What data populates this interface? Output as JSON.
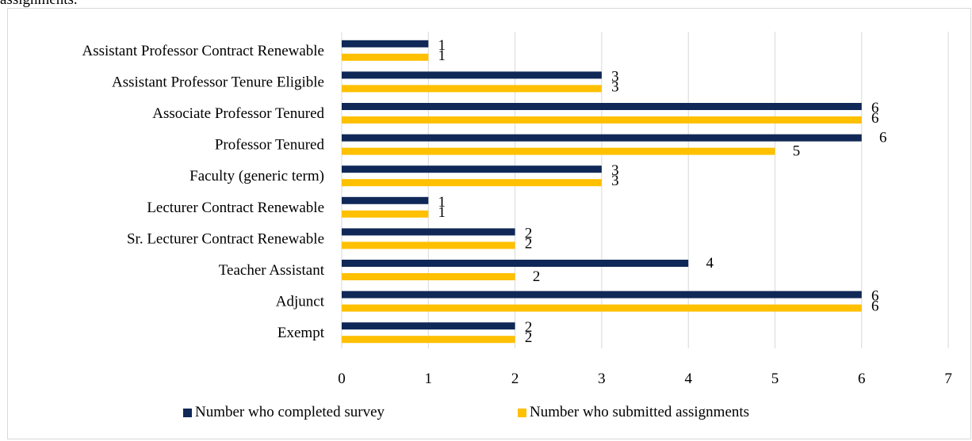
{
  "top_text": "assignments.",
  "colors": {
    "completed": "#0f2857",
    "submitted": "#ffc000",
    "grid": "#d9d9d9"
  },
  "chart_data": {
    "type": "bar",
    "orientation": "horizontal",
    "categories": [
      "Assistant Professor Contract Renewable",
      "Assistant Professor Tenure Eligible",
      "Associate Professor Tenured",
      "Professor Tenured",
      "Faculty (generic term)",
      "Lecturer Contract Renewable",
      "Sr. Lecturer Contract Renewable",
      "Teacher Assistant",
      "Adjunct",
      "Exempt"
    ],
    "series": [
      {
        "name": "Number who completed survey",
        "values": [
          1,
          3,
          6,
          6,
          3,
          1,
          2,
          4,
          6,
          2
        ]
      },
      {
        "name": "Number who submitted assignments",
        "values": [
          1,
          3,
          6,
          5,
          3,
          1,
          2,
          2,
          6,
          2
        ]
      }
    ],
    "xlim": [
      0,
      7
    ],
    "xticks": [
      "0",
      "1",
      "2",
      "3",
      "4",
      "5",
      "6",
      "7"
    ],
    "grid": true,
    "legend_position": "bottom"
  }
}
